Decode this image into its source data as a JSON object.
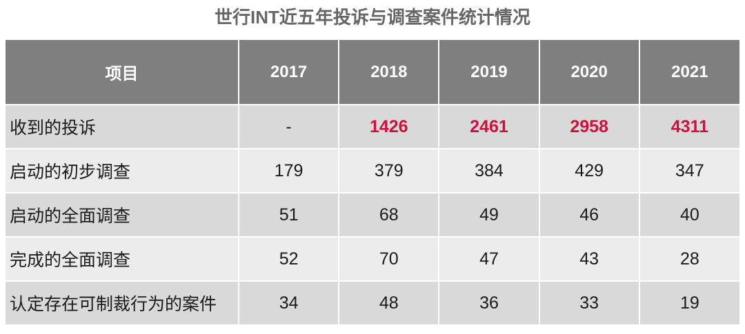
{
  "title": "世行INT近五年投诉与调查案件统计情况",
  "colors": {
    "header_bg": "#7f7f7f",
    "highlight": "#d0103a",
    "row_odd": "#d9d9d9",
    "row_even": "#ececec"
  },
  "chart_data": {
    "type": "table",
    "title": "世行INT近五年投诉与调查案件统计情况",
    "columns": [
      "项目",
      "2017",
      "2018",
      "2019",
      "2020",
      "2021"
    ],
    "rows": [
      {
        "label": "收到的投诉",
        "values": [
          "-",
          "1426",
          "2461",
          "2958",
          "4311"
        ],
        "highlighted": [
          false,
          true,
          true,
          true,
          true
        ]
      },
      {
        "label": "启动的初步调查",
        "values": [
          "179",
          "379",
          "384",
          "429",
          "347"
        ],
        "highlighted": [
          false,
          false,
          false,
          false,
          false
        ]
      },
      {
        "label": "启动的全面调查",
        "values": [
          "51",
          "68",
          "49",
          "46",
          "40"
        ],
        "highlighted": [
          false,
          false,
          false,
          false,
          false
        ]
      },
      {
        "label": "完成的全面调查",
        "values": [
          "52",
          "70",
          "47",
          "43",
          "28"
        ],
        "highlighted": [
          false,
          false,
          false,
          false,
          false
        ]
      },
      {
        "label": "认定存在可制裁行为的案件",
        "values": [
          "34",
          "48",
          "36",
          "33",
          "19"
        ],
        "highlighted": [
          false,
          false,
          false,
          false,
          false
        ]
      }
    ]
  }
}
